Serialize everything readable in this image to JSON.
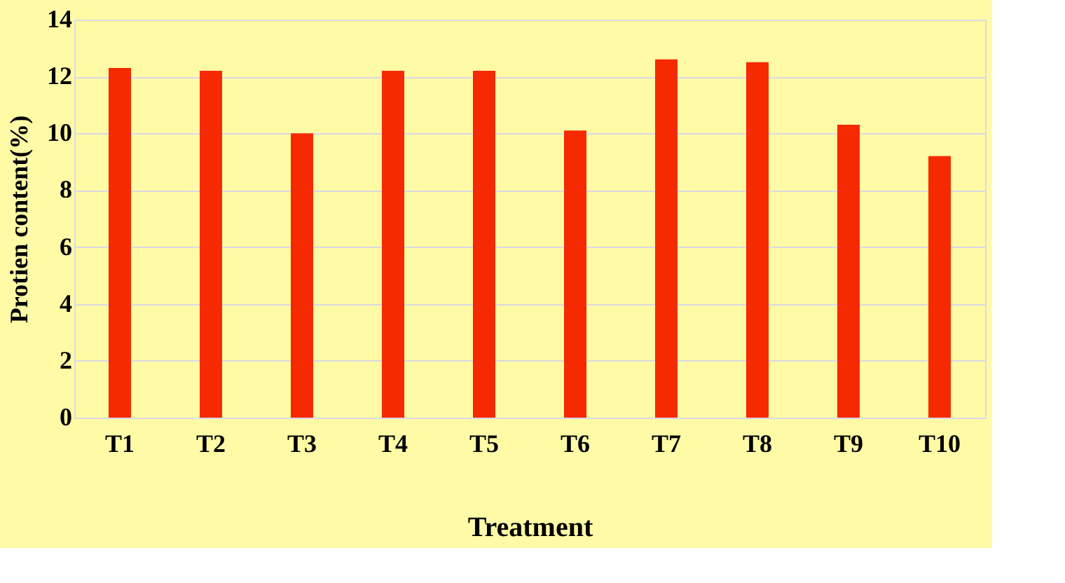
{
  "chart_data": {
    "type": "bar",
    "xlabel": "Treatment",
    "ylabel": "Protien content(%)",
    "categories": [
      "T1",
      "T2",
      "T3",
      "T4",
      "T5",
      "T6",
      "T7",
      "T8",
      "T9",
      "T10"
    ],
    "values": [
      12.3,
      12.2,
      10.0,
      12.2,
      12.2,
      10.1,
      12.6,
      12.5,
      10.3,
      9.2
    ],
    "color": "#f52a00",
    "ylim": [
      0,
      14
    ],
    "yticks": [
      0,
      2,
      4,
      6,
      8,
      10,
      12,
      14
    ],
    "grid": "y"
  }
}
